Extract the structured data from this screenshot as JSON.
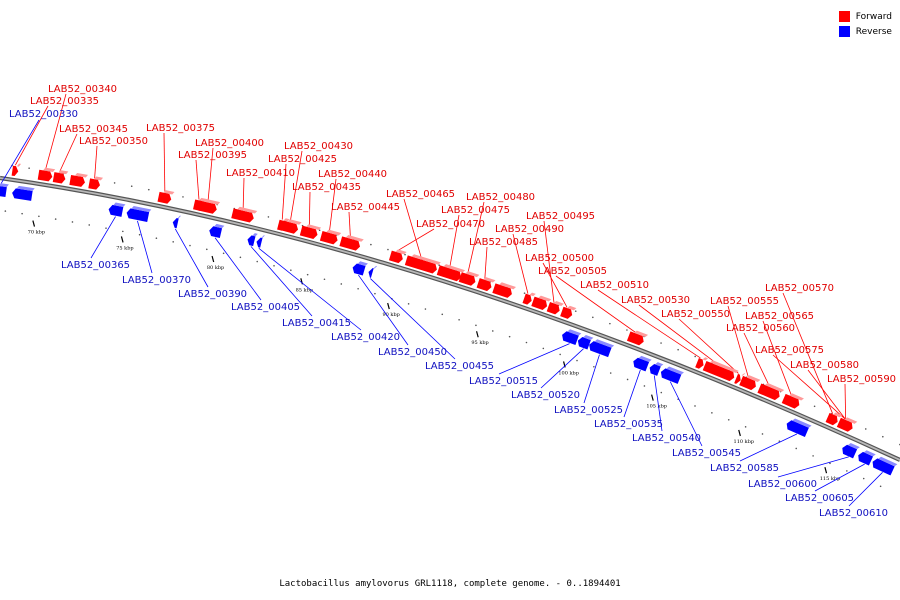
{
  "legend": {
    "items": [
      {
        "label": "Forward",
        "color": "#ff0000"
      },
      {
        "label": "Reverse",
        "color": "#0000ff"
      }
    ]
  },
  "caption": "Lactobacillus amylovorus GRL1118, complete genome. - 0..1894401",
  "colors": {
    "forward": "#ff0000",
    "forward_light": "#ff9a9a",
    "reverse": "#0000ff",
    "reverse_light": "#8a8aff",
    "forward_label": "#e00000",
    "reverse_label": "#1010c0",
    "backbone": "#888888"
  },
  "ticks": [
    "70 kbp",
    "75 kbp",
    "80 kbp",
    "85 kbp",
    "90 kbp",
    "95 kbp",
    "100 kbp",
    "105 kbp",
    "110 kbp",
    "115 kbp"
  ],
  "forward_genes": [
    "LAB52_00340",
    "LAB52_00335",
    "LAB52_00345",
    "LAB52_00350",
    "LAB52_00375",
    "LAB52_00400",
    "LAB52_00395",
    "LAB52_00410",
    "LAB52_00430",
    "LAB52_00425",
    "LAB52_00440",
    "LAB52_00435",
    "LAB52_00445",
    "LAB52_00465",
    "LAB52_00480",
    "LAB52_00475",
    "LAB52_00470",
    "LAB52_00495",
    "LAB52_00490",
    "LAB52_00485",
    "LAB52_00500",
    "LAB52_00505",
    "LAB52_00510",
    "LAB52_00530",
    "LAB52_00570",
    "LAB52_00555",
    "LAB52_00565",
    "LAB52_00550",
    "LAB52_00560",
    "LAB52_00575",
    "LAB52_00580",
    "LAB52_00590"
  ],
  "reverse_genes": [
    "LAB52_00330",
    "LAB52_00365",
    "LAB52_00370",
    "LAB52_00390",
    "LAB52_00405",
    "LAB52_00415",
    "LAB52_00420",
    "LAB52_00450",
    "LAB52_00455",
    "LAB52_00515",
    "LAB52_00520",
    "LAB52_00525",
    "LAB52_00535",
    "LAB52_00540",
    "LAB52_00545",
    "LAB52_00585",
    "LAB52_00600",
    "LAB52_00605",
    "LAB52_00610"
  ]
}
